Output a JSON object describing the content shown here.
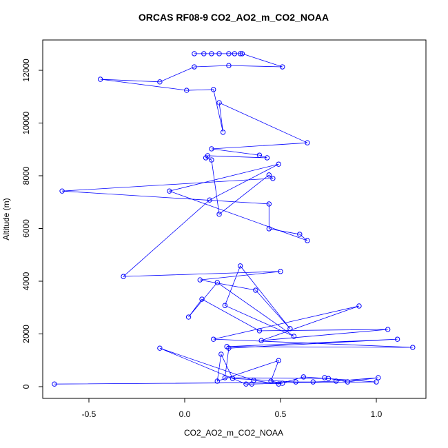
{
  "chart_data": {
    "type": "line",
    "title": "ORCAS RF08-9 CO2_AO2_m_CO2_NOAA",
    "x_label": "CO2_AO2_m_CO2_NOAA",
    "y_label": "Altitude (m)",
    "color": "#0000ff",
    "markers": "open-circle",
    "x": [
      -0.68,
      1.0,
      0.62,
      0.49,
      0.36,
      -0.13,
      0.32,
      0.35,
      0.51,
      0.45,
      0.49,
      0.17,
      0.19,
      0.25,
      0.58,
      0.67,
      0.79,
      1.01,
      0.85,
      0.73,
      0.75,
      0.21,
      0.23,
      1.11,
      0.22,
      1.19,
      0.15,
      0.91,
      0.4,
      1.06,
      0.39,
      0.09,
      0.02,
      0.17,
      0.57,
      0.21,
      0.29,
      0.55,
      0.37,
      0.08,
      0.5,
      -0.32,
      0.13,
      0.49,
      -0.08,
      0.64,
      0.6,
      0.44,
      0.44,
      -0.64,
      0.46,
      0.44,
      0.18,
      0.14,
      0.11,
      0.12,
      0.43,
      0.39,
      0.14,
      0.64,
      0.18,
      0.2,
      0.15,
      0.01,
      -0.44,
      -0.13,
      0.05,
      0.23,
      0.51,
      0.3,
      0.29,
      0.26,
      0.23,
      0.18,
      0.14,
      0.1,
      0.05
    ],
    "values": [
      100,
      180,
      370,
      100,
      240,
      1460,
      100,
      100,
      130,
      210,
      990,
      210,
      1230,
      310,
      180,
      180,
      210,
      340,
      180,
      340,
      310,
      340,
      1460,
      1800,
      1520,
      1490,
      1800,
      3060,
      1750,
      2170,
      2120,
      3320,
      2640,
      3950,
      1910,
      3080,
      4580,
      2200,
      3660,
      4050,
      4370,
      4180,
      7080,
      8440,
      7420,
      5540,
      5780,
      5990,
      6930,
      7420,
      7900,
      8030,
      6540,
      8600,
      8680,
      8760,
      8680,
      8780,
      9020,
      9250,
      10770,
      9650,
      11270,
      11240,
      11660,
      11560,
      12130,
      12180,
      12130,
      12630,
      12630,
      12630,
      12630,
      12630,
      12630,
      12630,
      12630
    ],
    "xlim": [
      -0.741,
      1.259
    ],
    "ylim": [
      -444,
      13150
    ],
    "xticks": [
      -0.5,
      {
        "value": 0,
        "label": "0.0"
      },
      0.5,
      {
        "value": 1,
        "label": "1.0"
      }
    ],
    "yticks": [
      0,
      2000,
      4000,
      6000,
      8000,
      10000,
      12000
    ]
  }
}
